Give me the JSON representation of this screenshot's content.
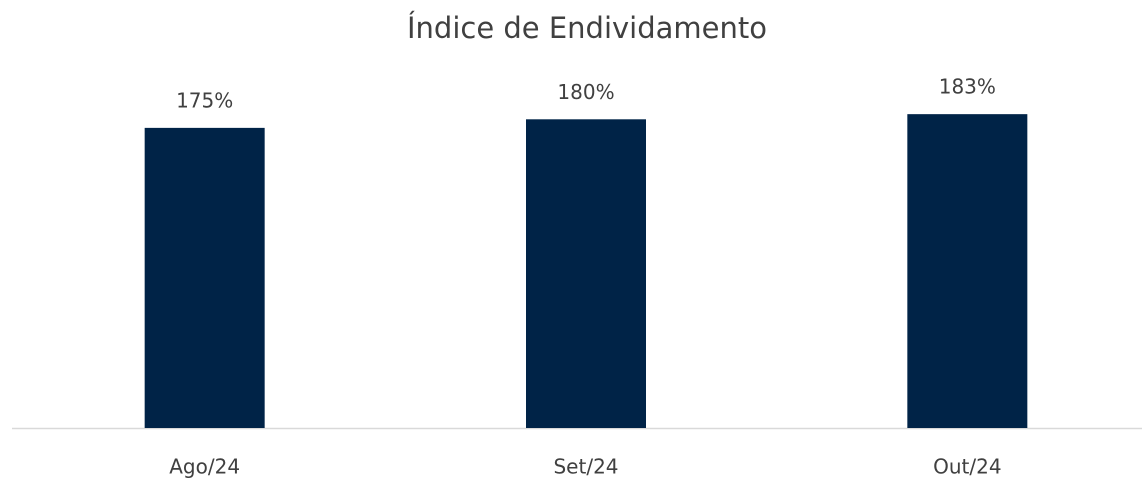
{
  "chart_data": {
    "type": "bar",
    "title": "Índice de Endividamento",
    "categories": [
      "Ago/24",
      "Set/24",
      "Out/24"
    ],
    "values": [
      175,
      180,
      183
    ],
    "value_labels": [
      "175%",
      "180%",
      "183%"
    ],
    "color": "#002347",
    "ylim": [
      0,
      200
    ]
  }
}
